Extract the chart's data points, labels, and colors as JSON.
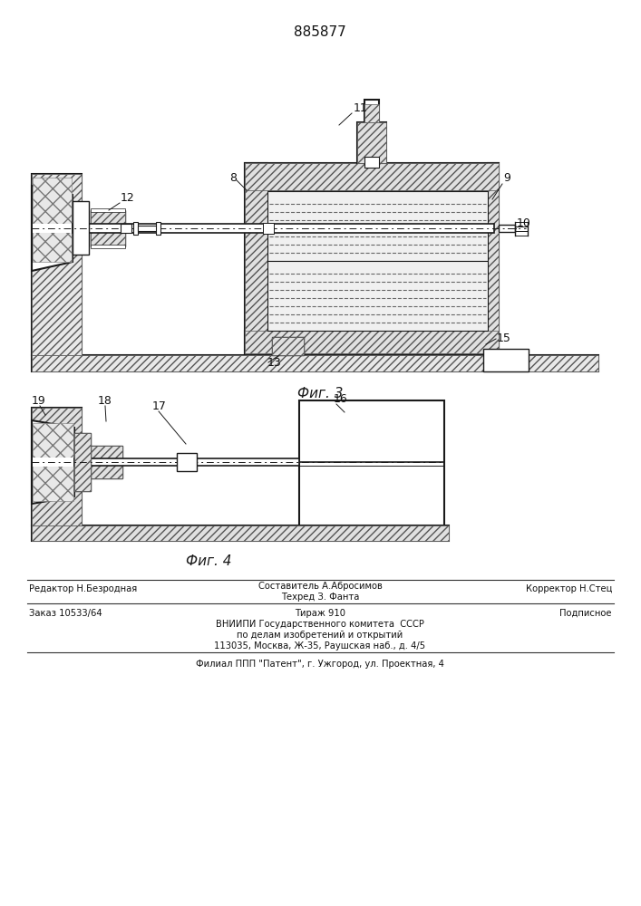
{
  "patent_number": "885877",
  "fig3_label": "Фиг. 3",
  "fig4_label": "Фиг. 4",
  "footer_line1_left": "Редактор Н.Безродная",
  "footer_line1_center1": "Составитель А.Абросимов",
  "footer_line1_center2": "Техред З. Фанта",
  "footer_line1_right": "Корректор Н.Стец",
  "footer_line2_left": "Заказ 10533/64",
  "footer_line2_center": "Тираж 910",
  "footer_line2_right": "Подписное",
  "footer_line3": "ВНИИПИ Государственного комитета  СССР",
  "footer_line4": "по делам изобретений и открытий",
  "footer_line5": "113035, Москва, Ж-35, Раушская наб., д. 4/5",
  "footer_line6": "Филиал ППП \"Патент\", г. Ужгород, ул. Проектная, 4",
  "bg_color": "#ffffff",
  "line_color": "#1a1a1a"
}
